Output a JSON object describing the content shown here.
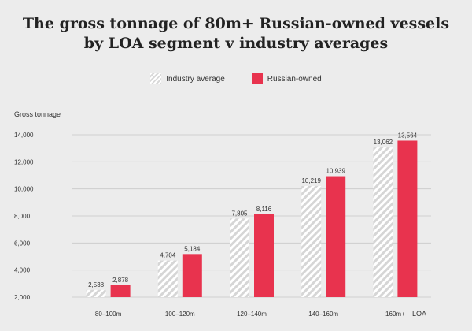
{
  "chart_data": {
    "type": "bar",
    "title": [
      "The gross tonnage of 80m+ Russian-owned vessels",
      "by LOA segment v industry averages"
    ],
    "ylabel": "Gross tonnage",
    "xlabel": "LOA",
    "ylim": [
      2000,
      14000
    ],
    "yticks": [
      2000,
      4000,
      6000,
      8000,
      10000,
      12000,
      14000
    ],
    "ytick_labels": [
      "2,000",
      "4,000",
      "6,000",
      "8,000",
      "10,000",
      "12,000",
      "14,000"
    ],
    "categories": [
      "80–100m",
      "100–120m",
      "120–140m",
      "140–160m",
      "160m+"
    ],
    "series": [
      {
        "name": "Industry average",
        "values": [
          2538,
          4704,
          7805,
          10219,
          13062
        ],
        "labels": [
          "2,538",
          "4,704",
          "7,805",
          "10,219",
          "13,062"
        ],
        "pattern": "hatched"
      },
      {
        "name": "Russian-owned",
        "values": [
          2878,
          5184,
          8116,
          10939,
          13564
        ],
        "labels": [
          "2,878",
          "5,184",
          "8,116",
          "10,939",
          "13,564"
        ],
        "color": "#e8334e"
      }
    ],
    "grid": true,
    "legend": "top-center"
  }
}
